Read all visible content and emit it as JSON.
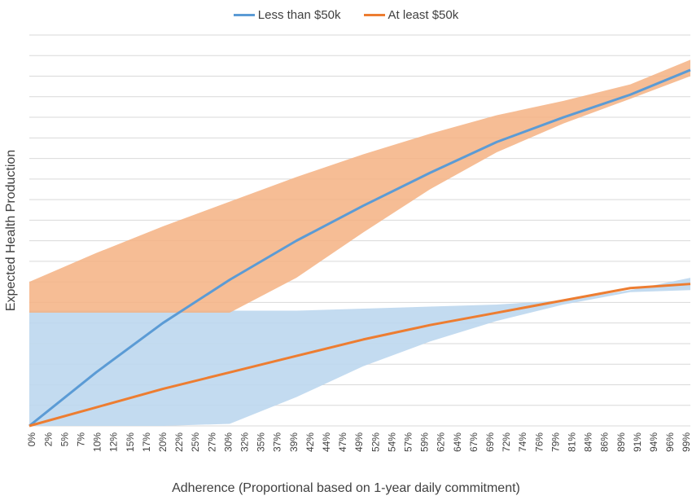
{
  "chart_data": {
    "type": "line",
    "title": "",
    "xlabel": "Adherence (Proportional based on 1-year daily commitment)",
    "ylabel": "Expected Health Production",
    "ylim": [
      0,
      19
    ],
    "grid": true,
    "legend_position": "top-center",
    "x_tick_labels": [
      "0%",
      "2%",
      "5%",
      "7%",
      "10%",
      "12%",
      "15%",
      "17%",
      "20%",
      "22%",
      "25%",
      "27%",
      "30%",
      "32%",
      "35%",
      "37%",
      "39%",
      "42%",
      "44%",
      "47%",
      "49%",
      "52%",
      "54%",
      "57%",
      "59%",
      "62%",
      "64%",
      "67%",
      "69%",
      "72%",
      "74%",
      "76%",
      "79%",
      "81%",
      "84%",
      "86%",
      "89%",
      "91%",
      "94%",
      "96%",
      "99%"
    ],
    "x": [
      0,
      0.1,
      0.2,
      0.3,
      0.4,
      0.5,
      0.6,
      0.7,
      0.8,
      0.9,
      0.99
    ],
    "series": [
      {
        "name": "Less than $50k",
        "color": "#5b9bd5",
        "band_color": "#f4b183",
        "values": [
          0,
          2.6,
          5.0,
          7.1,
          9.0,
          10.7,
          12.3,
          13.8,
          15.0,
          16.1,
          17.3
        ],
        "band_upper": [
          7.0,
          8.4,
          9.7,
          10.9,
          12.1,
          13.2,
          14.2,
          15.1,
          15.8,
          16.6,
          17.8
        ],
        "band_lower": [
          5.5,
          5.5,
          5.5,
          5.5,
          7.2,
          9.4,
          11.5,
          13.3,
          14.7,
          15.9,
          17.0
        ]
      },
      {
        "name": "At least $50k",
        "color": "#ed7d31",
        "band_color": "#bdd7ee",
        "values": [
          0,
          0.9,
          1.8,
          2.6,
          3.4,
          4.2,
          4.9,
          5.5,
          6.1,
          6.7,
          6.9
        ],
        "band_upper": [
          5.6,
          5.6,
          5.6,
          5.6,
          5.6,
          5.7,
          5.8,
          5.9,
          6.1,
          6.6,
          7.2
        ],
        "band_lower": [
          0,
          0,
          0,
          0.1,
          1.4,
          2.9,
          4.1,
          5.1,
          5.9,
          6.5,
          6.6
        ]
      }
    ]
  }
}
